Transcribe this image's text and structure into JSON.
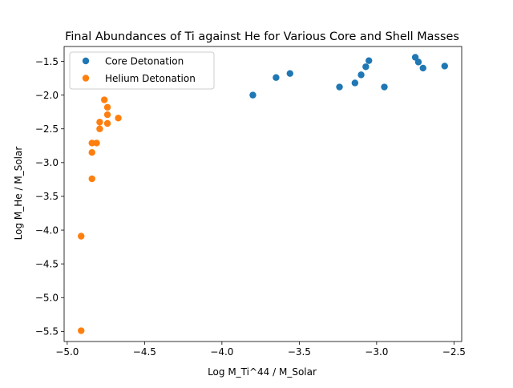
{
  "chart_data": {
    "type": "scatter",
    "title": "Final Abundances of Ti against He for Various Core and Shell Masses",
    "xlabel": "Log M_Ti^44 / M_Solar",
    "ylabel": "Log M_He / M_Solar",
    "xlim": [
      -5.02,
      -2.45
    ],
    "ylim": [
      -5.65,
      -1.28
    ],
    "xticks": [
      -5.0,
      -4.5,
      -4.0,
      -3.5,
      -3.0,
      -2.5
    ],
    "xtick_labels": [
      "−5.0",
      "−4.5",
      "−4.0",
      "−3.5",
      "−3.0",
      "−2.5"
    ],
    "yticks": [
      -1.5,
      -2.0,
      -2.5,
      -3.0,
      -3.5,
      -4.0,
      -4.5,
      -5.0,
      -5.5
    ],
    "ytick_labels": [
      "−1.5",
      "−2.0",
      "−2.5",
      "−3.0",
      "−3.5",
      "−4.0",
      "−4.5",
      "−5.0",
      "−5.5"
    ],
    "grid": false,
    "legend_position": "top-left",
    "series": [
      {
        "name": "Core Detonation",
        "color": "#1f77b4",
        "points": [
          [
            -3.8,
            -2.0
          ],
          [
            -3.65,
            -1.74
          ],
          [
            -3.56,
            -1.68
          ],
          [
            -3.24,
            -1.88
          ],
          [
            -3.14,
            -1.82
          ],
          [
            -3.1,
            -1.7
          ],
          [
            -3.07,
            -1.58
          ],
          [
            -3.05,
            -1.49
          ],
          [
            -2.95,
            -1.88
          ],
          [
            -2.75,
            -1.44
          ],
          [
            -2.73,
            -1.51
          ],
          [
            -2.7,
            -1.6
          ],
          [
            -2.56,
            -1.57
          ]
        ]
      },
      {
        "name": "Helium Detonation",
        "color": "#ff7f0e",
        "points": [
          [
            -4.76,
            -2.07
          ],
          [
            -4.74,
            -2.18
          ],
          [
            -4.74,
            -2.29
          ],
          [
            -4.74,
            -2.42
          ],
          [
            -4.67,
            -2.34
          ],
          [
            -4.79,
            -2.4
          ],
          [
            -4.79,
            -2.5
          ],
          [
            -4.84,
            -2.71
          ],
          [
            -4.81,
            -2.71
          ],
          [
            -4.84,
            -2.85
          ],
          [
            -4.84,
            -3.24
          ],
          [
            -4.91,
            -4.09
          ],
          [
            -4.91,
            -5.49
          ]
        ]
      }
    ]
  }
}
